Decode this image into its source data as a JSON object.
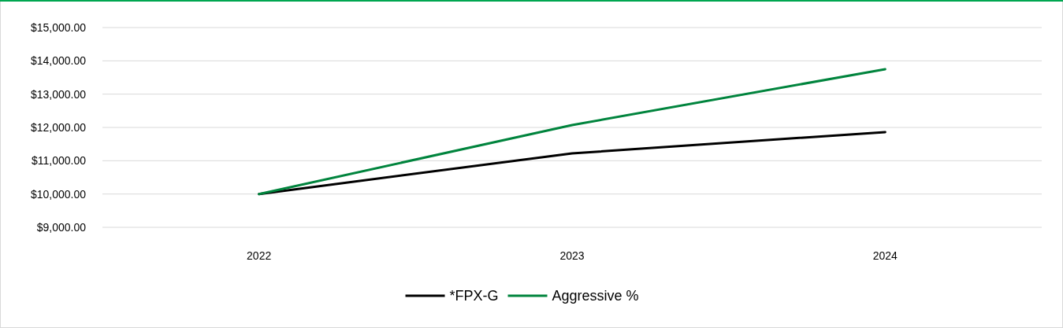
{
  "chart_data": {
    "type": "line",
    "categories": [
      "2022",
      "2023",
      "2024"
    ],
    "series": [
      {
        "name": "*FPX-G",
        "color": "#000000",
        "values": [
          10000,
          11220,
          11860
        ]
      },
      {
        "name": "Aggressive %",
        "color": "#00843d",
        "values": [
          10000,
          12070,
          13750
        ]
      }
    ],
    "ylim": [
      9000,
      15000
    ],
    "yticks": [
      {
        "value": 9000,
        "label": "$9,000.00"
      },
      {
        "value": 10000,
        "label": "$10,000.00"
      },
      {
        "value": 11000,
        "label": "$11,000.00"
      },
      {
        "value": 12000,
        "label": "$12,000.00"
      },
      {
        "value": 13000,
        "label": "$13,000.00"
      },
      {
        "value": 14000,
        "label": "$14,000.00"
      },
      {
        "value": 15000,
        "label": "$15,000.00"
      }
    ],
    "grid": "y",
    "legend": "bottom",
    "marker": "none",
    "line_style": "solid"
  }
}
